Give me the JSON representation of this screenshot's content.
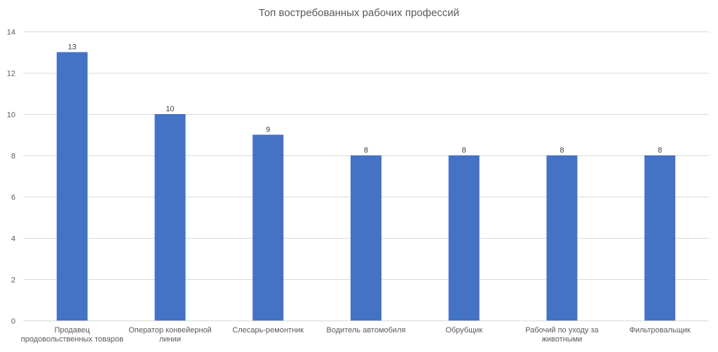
{
  "chart_data": {
    "type": "bar",
    "title": "Топ востребованных рабочих профессий",
    "categories": [
      [
        "Продавец",
        "продовольственных товаров"
      ],
      [
        "Оператор конвейерной",
        "линии"
      ],
      [
        "Слесарь-ремонтник"
      ],
      [
        "Водитель автомобиля"
      ],
      [
        "Обрубщик"
      ],
      [
        "Рабочий по уходу за",
        "животными"
      ],
      [
        "Фильтровальщик"
      ]
    ],
    "values": [
      13,
      10,
      9,
      8,
      8,
      8,
      8
    ],
    "data_labels": [
      "13",
      "10",
      "9",
      "8",
      "8",
      "8",
      "8"
    ],
    "ylim": [
      0,
      14
    ],
    "yticks": [
      0,
      2,
      4,
      6,
      8,
      10,
      12,
      14
    ],
    "ytick_labels": [
      "0",
      "2",
      "4",
      "6",
      "8",
      "10",
      "12",
      "14"
    ],
    "xlabel": "",
    "ylabel": "",
    "grid": true,
    "legend": "none",
    "bar_color": "#4472C4"
  }
}
